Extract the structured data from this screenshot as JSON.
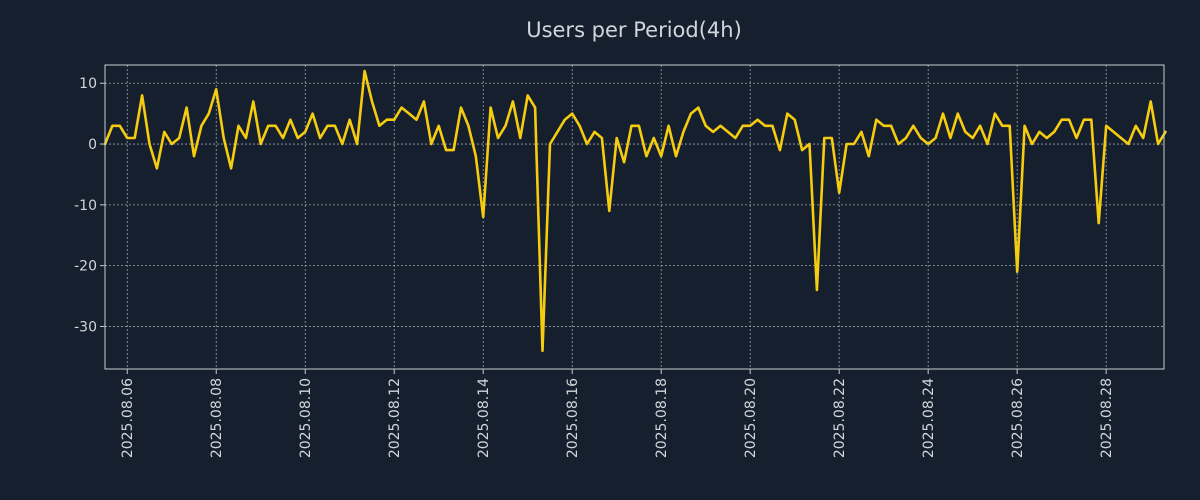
{
  "colors": {
    "background": "#151f2d",
    "line": "#f5cc0f",
    "axis": "#c8ccd1",
    "text": "#d2d6db",
    "grid": "#9aa3ad"
  },
  "chart_data": {
    "type": "line",
    "title": "Users per Period(4h)",
    "xlabel": "",
    "ylabel": "",
    "x_start": "2025.08.05 12:00",
    "x_step_hours": 4,
    "x_range_days": [
      0,
      23.8
    ],
    "ylim": [
      -37,
      13
    ],
    "grid": true,
    "legend": "none",
    "ytick_values": [
      10,
      0,
      -10,
      -20,
      -30
    ],
    "ytick_labels": [
      "10",
      "0",
      "-10",
      "-20",
      "-30"
    ],
    "xtick_positions_days": [
      0.5,
      2.5,
      4.5,
      6.5,
      8.5,
      10.5,
      12.5,
      14.5,
      16.5,
      18.5,
      20.5,
      22.5
    ],
    "xtick_labels": [
      "2025.08.06",
      "2025.08.08",
      "2025.08.10",
      "2025.08.12",
      "2025.08.14",
      "2025.08.16",
      "2025.08.18",
      "2025.08.20",
      "2025.08.22",
      "2025.08.24",
      "2025.08.26",
      "2025.08.28"
    ],
    "series": [
      {
        "name": "Users",
        "values": [
          0,
          3,
          3,
          1,
          1,
          8,
          0,
          -4,
          2,
          0,
          1,
          6,
          -2,
          3,
          5,
          9,
          1,
          -4,
          3,
          1,
          7,
          0,
          3,
          3,
          1,
          4,
          1,
          2,
          5,
          1,
          3,
          3,
          0,
          4,
          0,
          12,
          7,
          3,
          4,
          4,
          6,
          5,
          4,
          7,
          0,
          3,
          -1,
          -1,
          6,
          3,
          -2,
          -12,
          6,
          1,
          3,
          7,
          1,
          8,
          6,
          -34,
          0,
          2,
          4,
          5,
          3,
          0,
          2,
          1,
          -11,
          1,
          -3,
          3,
          3,
          -2,
          1,
          -2,
          3,
          -2,
          2,
          5,
          6,
          3,
          2,
          3,
          2,
          1,
          3,
          3,
          4,
          3,
          3,
          -1,
          5,
          4,
          -1,
          0,
          -24,
          1,
          1,
          -8,
          0,
          0,
          2,
          -2,
          4,
          3,
          3,
          0,
          1,
          3,
          1,
          0,
          1,
          5,
          1,
          5,
          2,
          1,
          3,
          0,
          5,
          3,
          3,
          -21,
          3,
          0,
          2,
          1,
          2,
          4,
          4,
          1,
          4,
          4,
          -13,
          3,
          2,
          1,
          0,
          3,
          1,
          7,
          0,
          2
        ]
      }
    ]
  }
}
